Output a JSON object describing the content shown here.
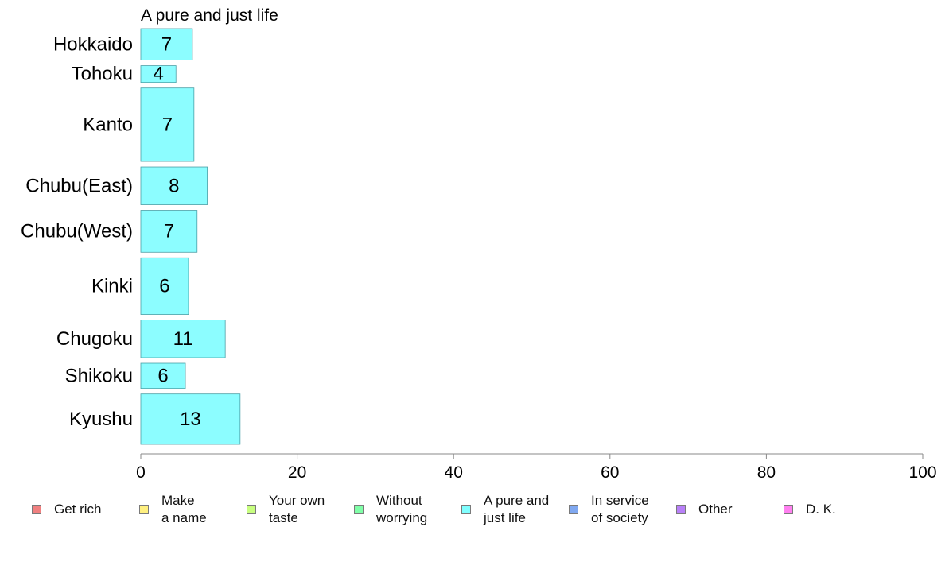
{
  "chart_data": {
    "type": "bar",
    "orientation": "horizontal",
    "subtitle": "A pure and just life",
    "categories": [
      "Hokkaido",
      "Tohoku",
      "Kanto",
      "Chubu(East)",
      "Chubu(West)",
      "Kinki",
      "Chugoku",
      "Shikoku",
      "Kyushu"
    ],
    "values": [
      6.6,
      4.5,
      6.8,
      8.5,
      7.2,
      6.1,
      10.8,
      5.7,
      12.7
    ],
    "value_labels": [
      "7",
      "4",
      "7",
      "8",
      "7",
      "6",
      "11",
      "6",
      "13"
    ],
    "relative_bar_widths": [
      0.75,
      0.4,
      1.75,
      0.9,
      1.0,
      1.35,
      0.9,
      0.6,
      1.2
    ],
    "xlim": [
      0,
      100
    ],
    "xticks": [
      "0",
      "20",
      "40",
      "60",
      "80",
      "100"
    ],
    "bar_color": "#8cfdff",
    "bar_edge_color": "#4a9fa6",
    "grid": false,
    "legend_position": "bottom",
    "legend": [
      {
        "label": "Get rich",
        "color": "#f08080"
      },
      {
        "label": "Make\na name",
        "color": "#fff080"
      },
      {
        "label": "Your own\ntaste",
        "color": "#c8ff80"
      },
      {
        "label": "Without\nworrying",
        "color": "#80ffa8"
      },
      {
        "label": "A pure and\njust life",
        "color": "#80ffff"
      },
      {
        "label": "In service\nof society",
        "color": "#80a8f0"
      },
      {
        "label": "Other",
        "color": "#b880f8"
      },
      {
        "label": "D. K.",
        "color": "#ff80f0"
      }
    ]
  }
}
